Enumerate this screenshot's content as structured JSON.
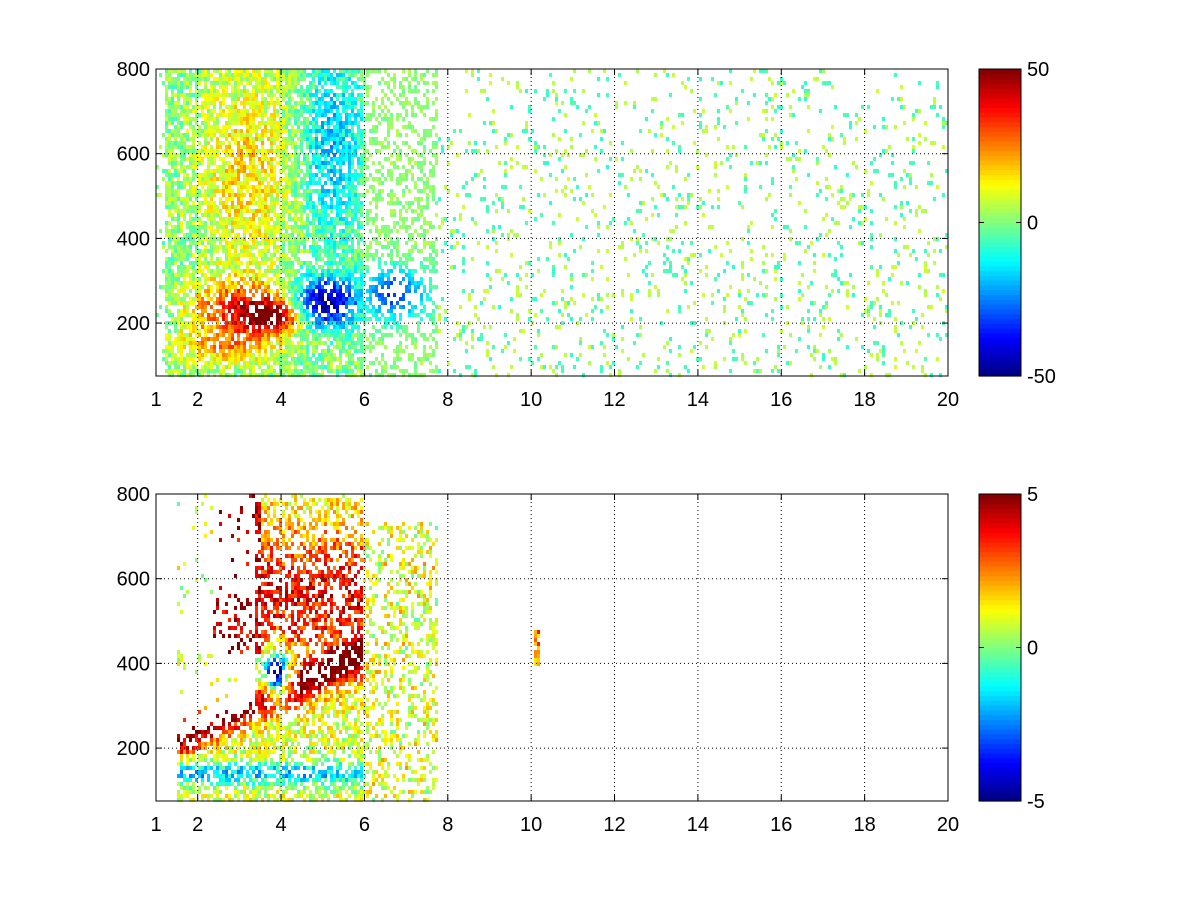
{
  "chart_data": [
    {
      "type": "heatmap",
      "title": "",
      "xlabel": "",
      "ylabel": "",
      "xlim": [
        1,
        20
      ],
      "ylim": [
        75,
        800
      ],
      "x_ticks": [
        1,
        2,
        4,
        6,
        8,
        10,
        12,
        14,
        16,
        18,
        20
      ],
      "x_tick_labels": [
        "1",
        "2",
        "4",
        "6",
        "8",
        "10",
        "12",
        "14",
        "16",
        "18",
        "20"
      ],
      "y_ticks": [
        200,
        400,
        600,
        800
      ],
      "y_tick_labels": [
        "200",
        "400",
        "600",
        "800"
      ],
      "grid": true,
      "colormap": "jet",
      "colorbar": {
        "limits": [
          -50,
          50
        ],
        "ticks": [
          50,
          0,
          -50
        ],
        "tick_labels": [
          "50",
          "0",
          "-50"
        ]
      },
      "features": [
        {
          "region": "x 1.5-4, y 110-200",
          "value": 20,
          "note": "orange lower band"
        },
        {
          "region": "x 2-4, y 200-300",
          "value": 35,
          "note": "red-orange core"
        },
        {
          "region": "x 3.5-4.5, y 180-260",
          "value": 45,
          "note": "dark red"
        },
        {
          "region": "x 4-6, y 180-320",
          "value": -45,
          "note": "deep blue core"
        },
        {
          "region": "x 5.9-7.8, y 200-360",
          "value": -30,
          "note": "blue cluster"
        },
        {
          "region": "x 2-4.5, y 350-800",
          "value": 15,
          "note": "yellow field"
        },
        {
          "region": "x 4-6, y 350-800",
          "value": -15,
          "note": "cyan/orange mix"
        },
        {
          "region": "x 6-20, y 75-800",
          "value": 0,
          "note": "sparse scattered near-zero pixels"
        }
      ]
    },
    {
      "type": "heatmap",
      "title": "",
      "xlabel": "",
      "ylabel": "",
      "xlim": [
        1,
        20
      ],
      "ylim": [
        75,
        800
      ],
      "x_ticks": [
        1,
        2,
        4,
        6,
        8,
        10,
        12,
        14,
        16,
        18,
        20
      ],
      "x_tick_labels": [
        "1",
        "2",
        "4",
        "6",
        "8",
        "10",
        "12",
        "14",
        "16",
        "18",
        "20"
      ],
      "y_ticks": [
        200,
        400,
        600,
        800
      ],
      "y_tick_labels": [
        "200",
        "400",
        "600",
        "800"
      ],
      "grid": true,
      "colormap": "jet",
      "colorbar": {
        "limits": [
          -5,
          5
        ],
        "ticks": [
          5,
          0,
          -5
        ],
        "tick_labels": [
          "5",
          "0",
          "-5"
        ]
      },
      "features": [
        {
          "region": "x 1.5-4, y 110-170",
          "value": -1.5,
          "note": "cyan band"
        },
        {
          "region": "x 2-6, y 140-340",
          "value": 0.8,
          "note": "green-yellow wedge"
        },
        {
          "region": "x 2.2-6, y 200-420",
          "value": 4.5,
          "note": "red diagonal band"
        },
        {
          "region": "x 3.5-6, y 400-780",
          "value": 3,
          "note": "orange-red plume"
        },
        {
          "region": "x 3.5-4.3, y 300-450",
          "value": -4,
          "note": "blue patch"
        },
        {
          "region": "x 2.5-3.5, y 420-560",
          "value": 3.5,
          "note": "sparse red"
        },
        {
          "region": "x 6-7.8, y 150-720",
          "value": 1,
          "note": "yellow-green scatter"
        },
        {
          "region": "x 10.1, y 390-470",
          "value": 2.5,
          "note": "isolated streak"
        }
      ]
    }
  ]
}
